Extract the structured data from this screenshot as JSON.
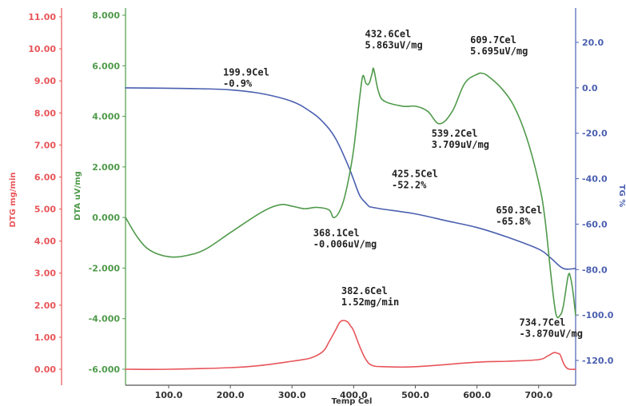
{
  "chart_data": {
    "type": "line",
    "xlabel": "Temp Cel",
    "xlim": [
      30,
      760
    ],
    "x_ticks": [
      "100.0",
      "200.0",
      "300.0",
      "400.0",
      "500.0",
      "600.0",
      "700.0"
    ],
    "x_tick_values": [
      100,
      200,
      300,
      400,
      500,
      600,
      700
    ],
    "axes": {
      "dtg": {
        "label": "DTG mg/min",
        "ylim": [
          0,
          11
        ],
        "ticks": [
          "0.00",
          "1.00",
          "2.00",
          "3.00",
          "4.00",
          "5.00",
          "6.00",
          "7.00",
          "8.00",
          "9.00",
          "10.00",
          "11.00"
        ],
        "tick_values": [
          0,
          1,
          2,
          3,
          4,
          5,
          6,
          7,
          8,
          9,
          10,
          11
        ],
        "color": "#e8555a"
      },
      "dta": {
        "label": "DTA uV/mg",
        "ylim": [
          -6,
          8
        ],
        "ticks": [
          "-6.000",
          "-4.000",
          "-2.000",
          "0.000",
          "2.000",
          "4.000",
          "6.000",
          "8.000"
        ],
        "tick_values": [
          -6,
          -4,
          -2,
          0,
          2,
          4,
          6,
          8
        ],
        "color": "#4f9a4a"
      },
      "tg": {
        "label": "TG %",
        "ylim": [
          -130,
          30
        ],
        "ticks": [
          "-120.0",
          "-100.0",
          "-80.0",
          "-60.0",
          "-40.0",
          "-20.0",
          "0.0",
          "20.0"
        ],
        "tick_values": [
          -120,
          -100,
          -80,
          -60,
          -40,
          -20,
          0,
          20
        ],
        "color": "#4a5fb0"
      }
    },
    "series": [
      {
        "axis": "tg",
        "color": "#4a5fb0",
        "x": [
          30,
          100,
          150,
          200,
          250,
          300,
          330,
          350,
          370,
          390,
          400,
          410,
          420,
          425,
          430,
          450,
          500,
          550,
          600,
          650,
          700,
          720,
          740,
          760
        ],
        "y": [
          0.0,
          -0.2,
          -0.4,
          -0.9,
          -2.5,
          -6.0,
          -10.5,
          -15.0,
          -22.0,
          -33.5,
          -40.5,
          -47.5,
          -50.8,
          -52.2,
          -52.6,
          -53.5,
          -55.5,
          -58.5,
          -61.5,
          -65.8,
          -71.0,
          -75.0,
          -79.5,
          -79.5
        ]
      },
      {
        "axis": "dta",
        "color": "#4f9a4a",
        "x": [
          30,
          50,
          70,
          100,
          130,
          160,
          200,
          250,
          280,
          300,
          320,
          340,
          360,
          368,
          380,
          390,
          400,
          410,
          415,
          420,
          425,
          430,
          432.6,
          440,
          450,
          480,
          500,
          520,
          539.2,
          560,
          580,
          600,
          609.7,
          620,
          640,
          660,
          680,
          700,
          710,
          720,
          728,
          734.7,
          740,
          748,
          752,
          756,
          760
        ],
        "y": [
          0.0,
          -0.8,
          -1.3,
          -1.55,
          -1.5,
          -1.25,
          -0.6,
          0.2,
          0.5,
          0.45,
          0.35,
          0.4,
          0.3,
          -0.006,
          0.4,
          1.3,
          2.7,
          4.8,
          5.6,
          5.3,
          5.3,
          5.7,
          5.863,
          5.0,
          4.6,
          4.4,
          4.4,
          4.2,
          3.709,
          4.2,
          5.3,
          5.66,
          5.695,
          5.55,
          5.1,
          4.4,
          3.2,
          1.4,
          0.0,
          -2.3,
          -3.8,
          -3.87,
          -3.5,
          -2.3,
          -2.4,
          -3.0,
          -3.87
        ]
      },
      {
        "axis": "dtg",
        "color": "#e8555a",
        "x": [
          30,
          100,
          200,
          250,
          300,
          330,
          350,
          360,
          370,
          377,
          382.6,
          390,
          395,
          400,
          410,
          420,
          430,
          450,
          500,
          600,
          650,
          700,
          715,
          725,
          730,
          735,
          740,
          745,
          750,
          760
        ],
        "y": [
          0.0,
          0.0,
          0.05,
          0.12,
          0.25,
          0.35,
          0.55,
          0.85,
          1.2,
          1.45,
          1.52,
          1.48,
          1.35,
          1.2,
          0.7,
          0.3,
          0.12,
          0.08,
          0.08,
          0.22,
          0.25,
          0.3,
          0.42,
          0.52,
          0.5,
          0.45,
          0.2,
          0.05,
          0.0,
          0.0
        ]
      }
    ],
    "annotations": [
      {
        "axis": "tg",
        "x": 199.9,
        "y": -0.9,
        "lines": [
          "199.9Cel",
          "-0.9%"
        ]
      },
      {
        "axis": "dta",
        "x": 432.6,
        "y": 5.863,
        "lines": [
          "432.6Cel",
          "5.863uV/mg"
        ]
      },
      {
        "axis": "dta",
        "x": 609.7,
        "y": 5.695,
        "lines": [
          "609.7Cel",
          "5.695uV/mg"
        ]
      },
      {
        "axis": "dta",
        "x": 539.2,
        "y": 3.709,
        "lines": [
          "539.2Cel",
          "3.709uV/mg"
        ]
      },
      {
        "axis": "tg",
        "x": 425.5,
        "y": -52.2,
        "lines": [
          "425.5Cel",
          "-52.2%"
        ]
      },
      {
        "axis": "dta",
        "x": 368.1,
        "y": -0.006,
        "lines": [
          "368.1Cel",
          "-0.006uV/mg"
        ]
      },
      {
        "axis": "tg",
        "x": 650.3,
        "y": -65.8,
        "lines": [
          "650.3Cel",
          "-65.8%"
        ]
      },
      {
        "axis": "dtg",
        "x": 382.6,
        "y": 1.52,
        "lines": [
          "382.6Cel",
          "1.52mg/min"
        ]
      },
      {
        "axis": "dta",
        "x": 734.7,
        "y": -3.87,
        "lines": [
          "734.7Cel",
          "-3.870uV/mg"
        ]
      }
    ]
  }
}
